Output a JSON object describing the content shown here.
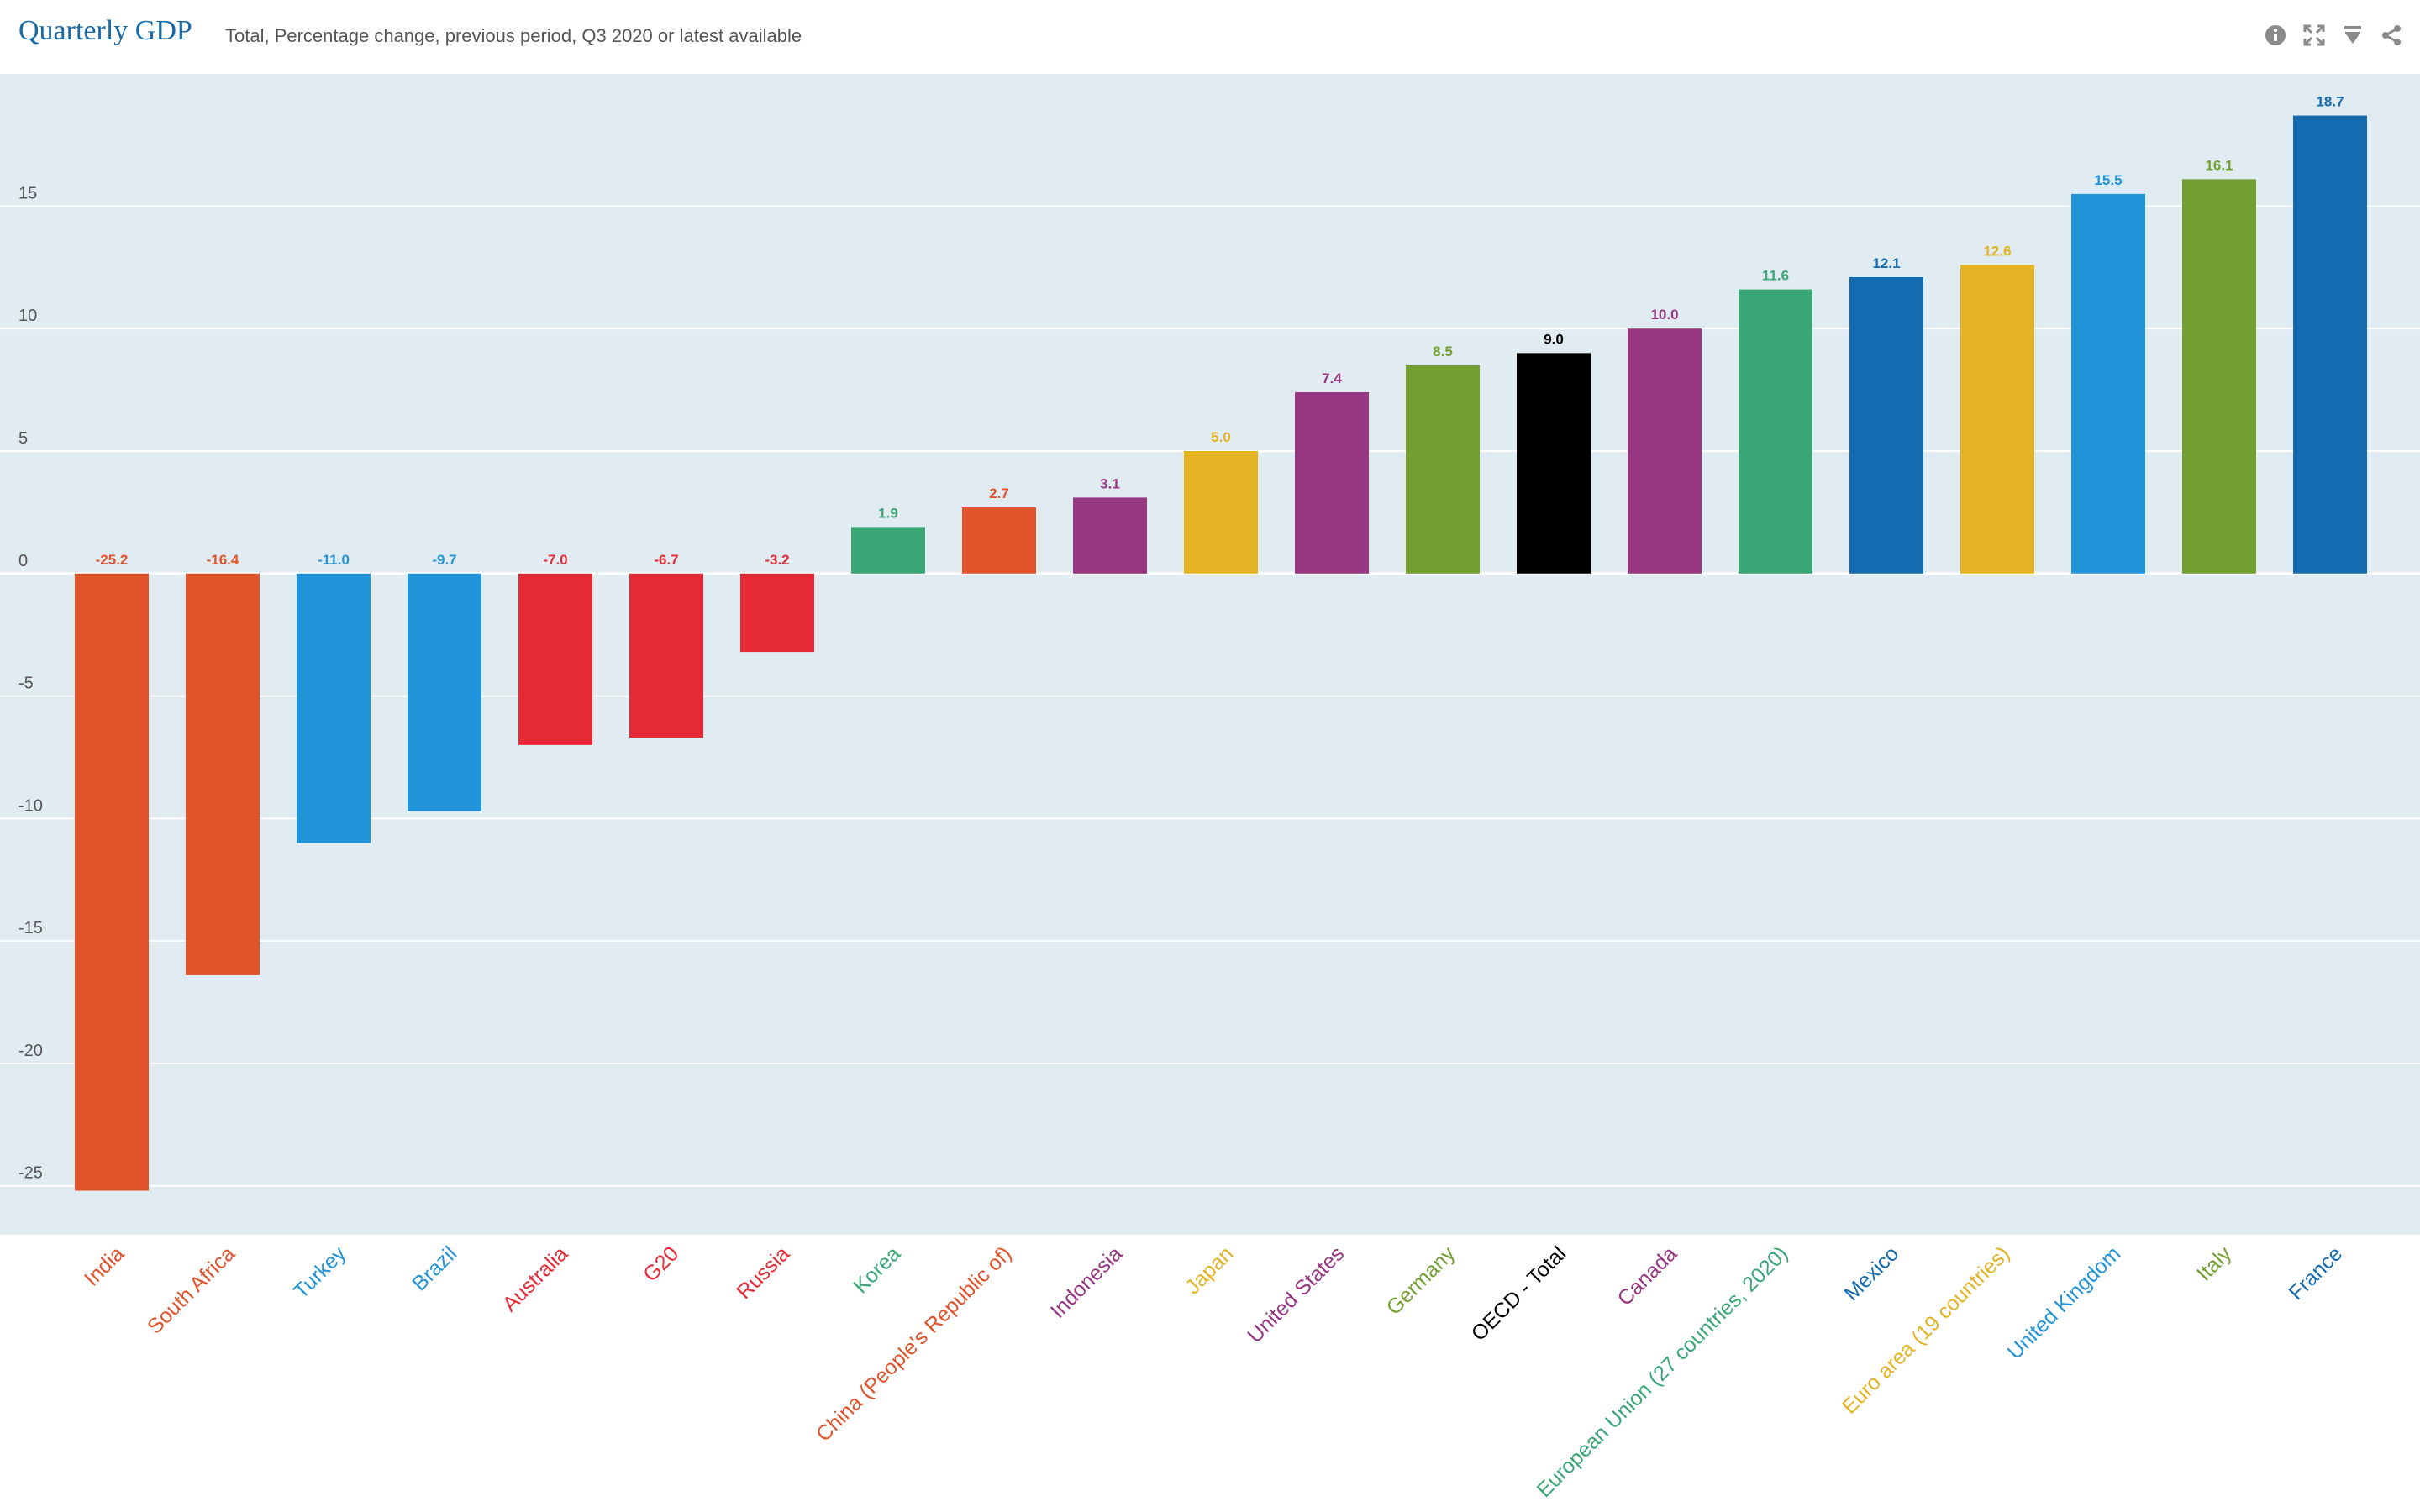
{
  "header": {
    "title": "Quarterly GDP",
    "subtitle": "Total, Percentage change, previous period, Q3 2020 or latest available",
    "tools": [
      {
        "icon": "info-icon"
      },
      {
        "icon": "fullscreen-icon"
      },
      {
        "icon": "download-icon"
      },
      {
        "icon": "share-icon"
      }
    ]
  },
  "colors": {
    "plot_bg": "#e1ebf2",
    "title": "#1a6aa8"
  },
  "chart_data": {
    "type": "bar",
    "title": "Quarterly GDP",
    "subtitle": "Total, Percentage change, previous period, Q3 2020 or latest available",
    "xlabel": "",
    "ylabel": "",
    "ylim": [
      -27,
      20.4
    ],
    "yticks": [
      15,
      10,
      5,
      0,
      -5,
      -10,
      -15,
      -20,
      -25
    ],
    "grid": true,
    "categories": [
      "India",
      "South Africa",
      "Turkey",
      "Brazil",
      "Australia",
      "G20",
      "Russia",
      "Korea",
      "China (People's Republic of)",
      "Indonesia",
      "Japan",
      "United States",
      "Germany",
      "OECD - Total",
      "Canada",
      "European Union (27 countries, 2020)",
      "Mexico",
      "Euro area (19 countries)",
      "United Kingdom",
      "Italy",
      "France"
    ],
    "values": [
      -25.2,
      -16.4,
      -11.0,
      -9.7,
      -7.0,
      -6.7,
      -3.2,
      1.9,
      2.7,
      3.1,
      5.0,
      7.4,
      8.5,
      9.0,
      10.0,
      11.6,
      12.1,
      12.6,
      15.5,
      16.1,
      18.7
    ],
    "value_labels": [
      "-25.2",
      "-16.4",
      "-11.0",
      "-9.7",
      "-7.0",
      "-6.7",
      "-3.2",
      "1.9",
      "2.7",
      "3.1",
      "5.0",
      "7.4",
      "8.5",
      "9.0",
      "10.0",
      "11.6",
      "12.1",
      "12.6",
      "15.5",
      "16.1",
      "18.7"
    ],
    "colors": [
      "#e0532b",
      "#e0532b",
      "#2294d9",
      "#2294d9",
      "#e52a35",
      "#e52a35",
      "#e52a35",
      "#3aa676",
      "#e0532b",
      "#973681",
      "#e3b323",
      "#973681",
      "#739f30",
      "#000000",
      "#973681",
      "#3aa676",
      "#146bb0",
      "#e3b323",
      "#2294d9",
      "#739f30",
      "#146bb0"
    ],
    "label_colors": [
      "#e0532b",
      "#e0532b",
      "#2294d9",
      "#2294d9",
      "#e52a35",
      "#e52a35",
      "#e52a35",
      "#3aa676",
      "#e0532b",
      "#973681",
      "#e3b323",
      "#973681",
      "#739f30",
      "#000000",
      "#973681",
      "#3aa676",
      "#146bb0",
      "#e3b323",
      "#2294d9",
      "#739f30",
      "#146bb0"
    ]
  }
}
